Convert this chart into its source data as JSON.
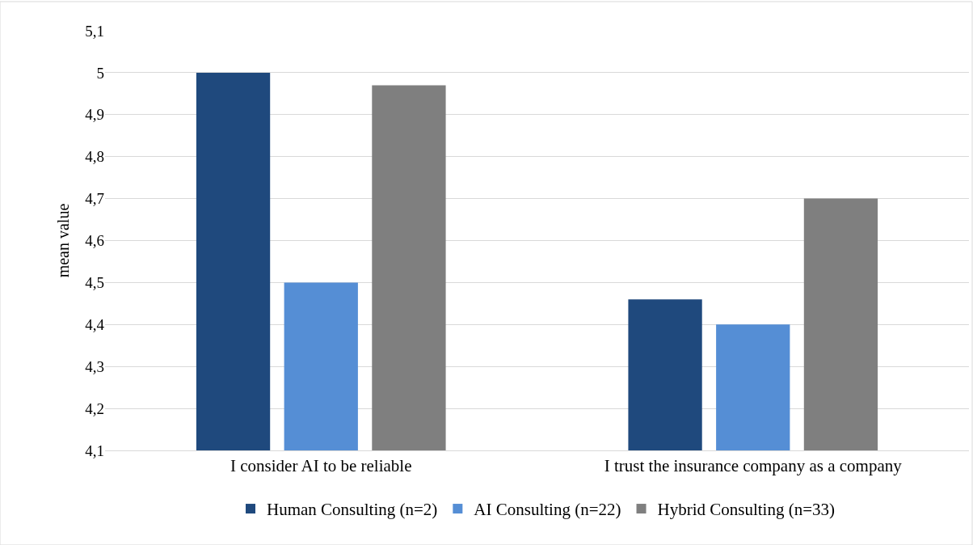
{
  "chart_data": {
    "type": "bar",
    "ylabel": "mean value",
    "categories": [
      "I consider AI to be reliable",
      "I trust the insurance company as a company"
    ],
    "series": [
      {
        "name": "Human Consulting (n=2)",
        "color": "#1f497d",
        "values": [
          5.0,
          4.46
        ]
      },
      {
        "name": "AI Consulting (n=22)",
        "color": "#558ed5",
        "values": [
          4.5,
          4.4
        ]
      },
      {
        "name": "Hybrid Consulting (n=33)",
        "color": "#7f7f7f",
        "values": [
          4.97,
          4.7
        ]
      }
    ],
    "ylim": [
      4.1,
      5.1
    ],
    "yticks": [
      {
        "value": 4.1,
        "label": "4,1"
      },
      {
        "value": 4.2,
        "label": "4,2"
      },
      {
        "value": 4.3,
        "label": "4,3"
      },
      {
        "value": 4.4,
        "label": "4,4"
      },
      {
        "value": 4.5,
        "label": "4,5"
      },
      {
        "value": 4.6,
        "label": "4,6"
      },
      {
        "value": 4.7,
        "label": "4,7"
      },
      {
        "value": 4.8,
        "label": "4,8"
      },
      {
        "value": 4.9,
        "label": "4,9"
      },
      {
        "value": 5,
        "label": "5"
      },
      {
        "value": 5.1,
        "label": "5,1"
      }
    ],
    "grid": "y",
    "legend": "bottom"
  }
}
